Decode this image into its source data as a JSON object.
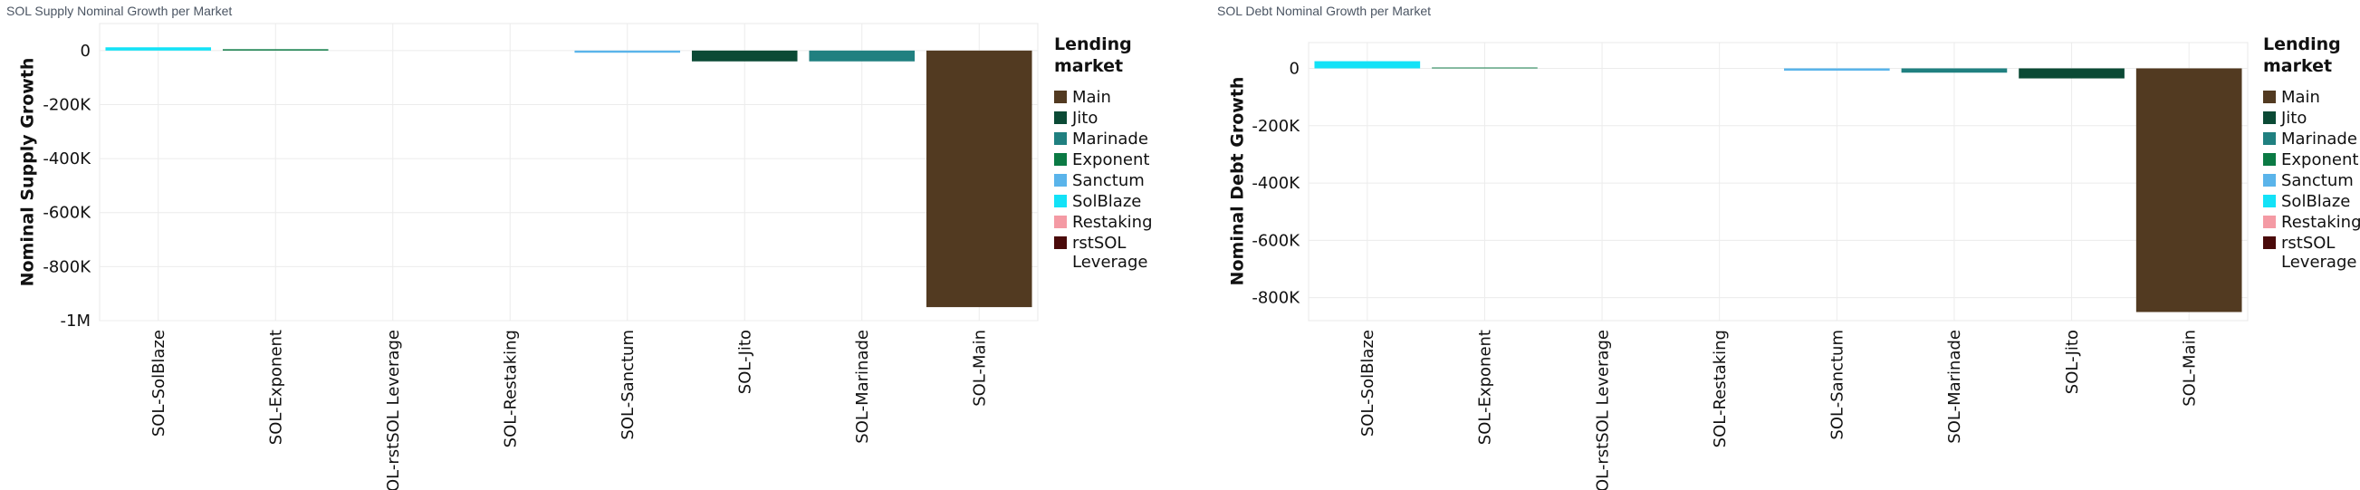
{
  "chart_data": [
    {
      "type": "bar",
      "title": "SOL Supply Nominal Growth per Market",
      "xlabel": "",
      "ylabel": "Nominal Supply Growth",
      "ylim": [
        -1000000,
        100000
      ],
      "yticks": [
        0,
        -200000,
        -400000,
        -600000,
        -800000,
        -1000000
      ],
      "ytick_labels": [
        "0",
        "-200K",
        "-400K",
        "-600K",
        "-800K",
        "-1M"
      ],
      "grid": true,
      "legend_position": "right",
      "legend_title": "Lending market",
      "categories": [
        "SOL-SolBlaze",
        "SOL-Exponent",
        "SOL-rstSOL Leverage",
        "SOL-Restaking",
        "SOL-Sanctum",
        "SOL-Jito",
        "SOL-Marinade",
        "SOL-Main"
      ],
      "values": [
        12000,
        5000,
        0,
        0,
        -8000,
        -40000,
        -40000,
        -950000
      ],
      "bar_markets": [
        "SolBlaze",
        "Exponent",
        "rstSOL Leverage",
        "Restaking",
        "Sanctum",
        "Jito",
        "Marinade",
        "Main"
      ]
    },
    {
      "type": "bar",
      "title": "SOL Debt Nominal Growth per Market",
      "xlabel": "",
      "ylabel": "Nominal Debt Growth",
      "ylim": [
        -880000,
        90000
      ],
      "yticks": [
        0,
        -200000,
        -400000,
        -600000,
        -800000
      ],
      "ytick_labels": [
        "0",
        "-200K",
        "-400K",
        "-600K",
        "-800K"
      ],
      "grid": true,
      "legend_position": "right",
      "legend_title": "Lending market",
      "categories": [
        "SOL-SolBlaze",
        "SOL-Exponent",
        "SOL-rstSOL Leverage",
        "SOL-Restaking",
        "SOL-Sanctum",
        "SOL-Marinade",
        "SOL-Jito",
        "SOL-Main"
      ],
      "values": [
        25000,
        3000,
        0,
        0,
        -8000,
        -15000,
        -35000,
        -850000
      ],
      "bar_markets": [
        "SolBlaze",
        "Exponent",
        "rstSOL Leverage",
        "Restaking",
        "Sanctum",
        "Marinade",
        "Jito",
        "Main"
      ]
    }
  ],
  "legend": [
    {
      "name": "Main",
      "color": "#523a21"
    },
    {
      "name": "Jito",
      "color": "#0b4a35"
    },
    {
      "name": "Marinade",
      "color": "#208080"
    },
    {
      "name": "Exponent",
      "color": "#0b7a44"
    },
    {
      "name": "Sanctum",
      "color": "#5ab4ea"
    },
    {
      "name": "SolBlaze",
      "color": "#13e2f7"
    },
    {
      "name": "Restaking",
      "color": "#f49aa4"
    },
    {
      "name": "rstSOL Leverage",
      "color": "#4a0a0a"
    }
  ]
}
